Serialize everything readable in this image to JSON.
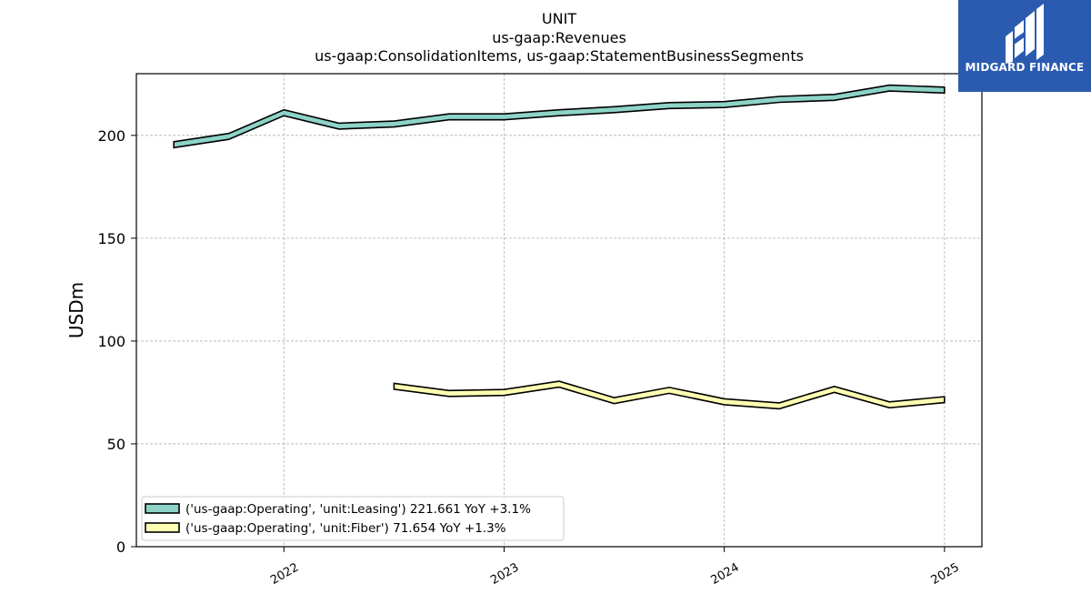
{
  "header": {
    "title_lines": [
      "UNIT",
      "us-gaap:Revenues",
      "us-gaap:ConsolidationItems, us-gaap:StatementBusinessSegments"
    ]
  },
  "logo": {
    "text": "MIDGARD FINANCE",
    "color": "#2a5bb0"
  },
  "chart_data": {
    "type": "line",
    "title": "UNIT\nus-gaap:Revenues\nus-gaap:ConsolidationItems, us-gaap:StatementBusinessSegments",
    "xlabel": "",
    "ylabel": "USDm",
    "ylim": [
      0,
      230
    ],
    "xlim": [
      2021.33,
      2025.17
    ],
    "yticks": [
      0,
      50,
      100,
      150,
      200
    ],
    "xticks": [
      2022,
      2023,
      2024,
      2025
    ],
    "xtick_labels": [
      "2022",
      "2023",
      "2024",
      "2025"
    ],
    "grid": true,
    "legend_position": "lower-left",
    "series": [
      {
        "name": "('us-gaap:Operating', 'unit:Leasing') 221.661 YoY +3.1%",
        "color": "#8dd3c7",
        "x": [
          2021.5,
          2021.75,
          2022.0,
          2022.25,
          2022.5,
          2022.75,
          2023.0,
          2023.25,
          2023.5,
          2023.75,
          2024.0,
          2024.25,
          2024.5,
          2024.75,
          2025.0
        ],
        "y": [
          195.5,
          199.5,
          211.0,
          204.5,
          205.5,
          209.0,
          209.0,
          211.0,
          212.5,
          214.5,
          215.0,
          217.5,
          218.5,
          223.0,
          222.0
        ]
      },
      {
        "name": "('us-gaap:Operating', 'unit:Fiber') 71.654 YoY +1.3%",
        "color": "#ffffb3",
        "x": [
          2022.5,
          2022.75,
          2023.0,
          2023.25,
          2023.5,
          2023.75,
          2024.0,
          2024.25,
          2024.5,
          2024.75,
          2025.0
        ],
        "y": [
          78.0,
          74.5,
          75.0,
          79.0,
          71.0,
          76.0,
          70.5,
          68.5,
          76.5,
          69.0,
          71.5
        ]
      }
    ]
  }
}
